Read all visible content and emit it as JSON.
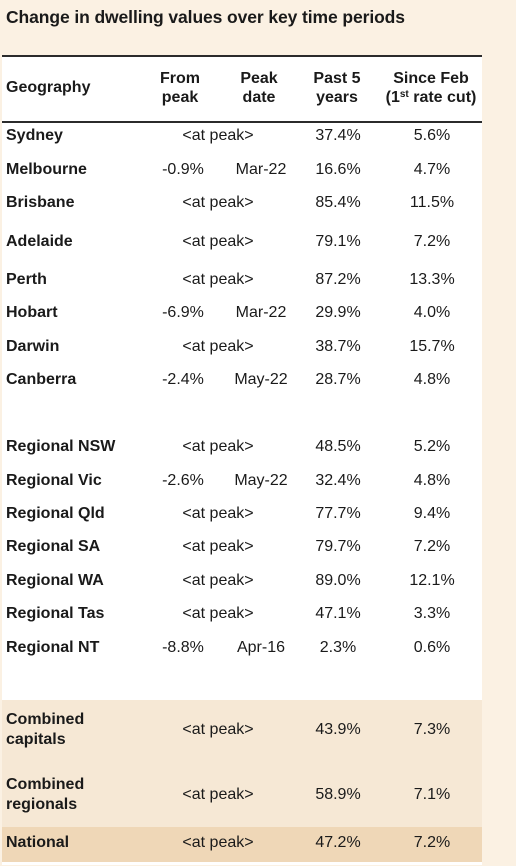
{
  "title": "Change in dwelling values over key time periods",
  "headers": {
    "geography": "Geography",
    "from_peak_1": "From",
    "from_peak_2": "peak",
    "peak_date_1": "Peak",
    "peak_date_2": "date",
    "past5_1": "Past 5",
    "past5_2": "years",
    "since_1": "Since Feb",
    "since_2_pre": "(1",
    "since_2_sup": "st",
    "since_2_post": " rate cut)"
  },
  "rows": [
    {
      "geo": "Sydney",
      "from_peak": "<at peak>",
      "peak_date": "",
      "past5": "37.4%",
      "since": "5.6%"
    },
    {
      "geo": "Melbourne",
      "from_peak": "-0.9%",
      "peak_date": "Mar-22",
      "past5": "16.6%",
      "since": "4.7%"
    },
    {
      "geo": "Brisbane",
      "from_peak": "<at peak>",
      "peak_date": "",
      "past5": "85.4%",
      "since": "11.5%"
    },
    {
      "geo": "Adelaide",
      "from_peak": "<at peak>",
      "peak_date": "",
      "past5": "79.1%",
      "since": "7.2%"
    },
    {
      "geo": "Perth",
      "from_peak": "<at peak>",
      "peak_date": "",
      "past5": "87.2%",
      "since": "13.3%"
    },
    {
      "geo": "Hobart",
      "from_peak": "-6.9%",
      "peak_date": "Mar-22",
      "past5": "29.9%",
      "since": "4.0%"
    },
    {
      "geo": "Darwin",
      "from_peak": "<at peak>",
      "peak_date": "",
      "past5": "38.7%",
      "since": "15.7%"
    },
    {
      "geo": "Canberra",
      "from_peak": "-2.4%",
      "peak_date": "May-22",
      "past5": "28.7%",
      "since": "4.8%"
    },
    {
      "geo": "Regional NSW",
      "from_peak": "<at peak>",
      "peak_date": "",
      "past5": "48.5%",
      "since": "5.2%"
    },
    {
      "geo": "Regional Vic",
      "from_peak": "-2.6%",
      "peak_date": "May-22",
      "past5": "32.4%",
      "since": "4.8%"
    },
    {
      "geo": "Regional Qld",
      "from_peak": "<at peak>",
      "peak_date": "",
      "past5": "77.7%",
      "since": "9.4%"
    },
    {
      "geo": "Regional SA",
      "from_peak": "<at peak>",
      "peak_date": "",
      "past5": "79.7%",
      "since": "7.2%"
    },
    {
      "geo": "Regional WA",
      "from_peak": "<at peak>",
      "peak_date": "",
      "past5": "89.0%",
      "since": "12.1%"
    },
    {
      "geo": "Regional Tas",
      "from_peak": "<at peak>",
      "peak_date": "",
      "past5": "47.1%",
      "since": "3.3%"
    },
    {
      "geo": "Regional NT",
      "from_peak": "-8.8%",
      "peak_date": "Apr-16",
      "past5": "2.3%",
      "since": "0.6%"
    },
    {
      "geo": "Combined capitals",
      "from_peak": "<at peak>",
      "peak_date": "",
      "past5": "43.9%",
      "since": "7.3%"
    },
    {
      "geo": "Combined regionals",
      "from_peak": "<at peak>",
      "peak_date": "",
      "past5": "58.9%",
      "since": "7.1%"
    },
    {
      "geo": "National",
      "from_peak": "<at peak>",
      "peak_date": "",
      "past5": "47.2%",
      "since": "7.2%"
    }
  ]
}
